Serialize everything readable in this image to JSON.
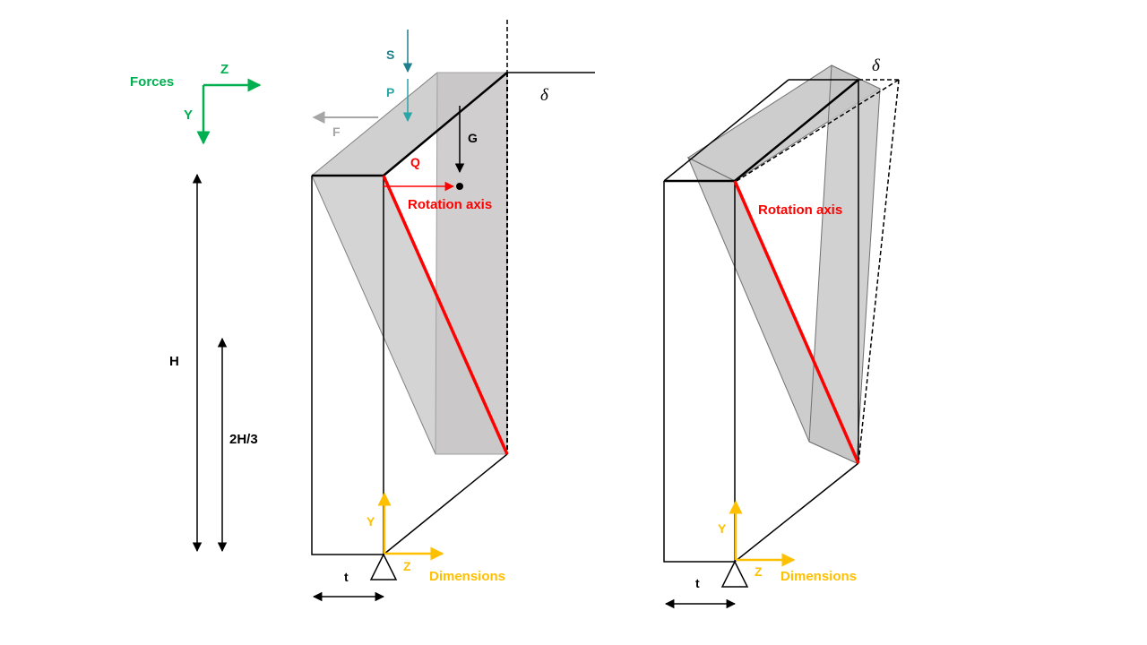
{
  "forces_axes": {
    "title": "Forces",
    "z_label": "Z",
    "y_label": "Y"
  },
  "forces": {
    "s": "S",
    "p": "P",
    "f": "F",
    "g": "G",
    "q": "Q"
  },
  "dimensions": {
    "h": "H",
    "two_thirds_h": "2H/3",
    "t": "t",
    "delta": "δ",
    "axes_title": "Dimensions",
    "y_label": "Y",
    "z_label": "Z"
  },
  "labels": {
    "rotation_axis": "Rotation axis"
  },
  "colors": {
    "forces_green": "#00b050",
    "dimensions_yellow": "#ffc000",
    "red": "#ff0000",
    "teal_s": "#1f7f8c",
    "teal_p": "#2aa6a6",
    "gray_f": "#a6a6a6",
    "face_gray": "#d0d0d0"
  }
}
